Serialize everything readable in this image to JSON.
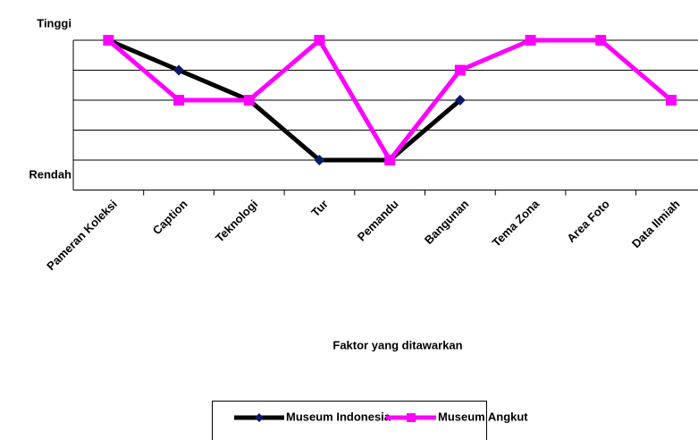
{
  "chart_data": {
    "type": "line",
    "y_top_label": "Tinggi",
    "y_bottom_label": "Rendah",
    "x_label": "Faktor yang ditawarkan",
    "categories": [
      "Pameran Koleksi",
      "Caption",
      "Teknologi",
      "Tur",
      "Pemandu",
      "Bangunan",
      "Tema Zona",
      "Area Foto",
      "Data Ilmiah"
    ],
    "series": [
      {
        "name": "Museum Indonesia",
        "color": "#000000",
        "marker": "diamond",
        "marker_color": "#0a1a66",
        "values": [
          5,
          4,
          3,
          1,
          1,
          3,
          null,
          null,
          null
        ]
      },
      {
        "name": "Museum Angkut",
        "color": "#ff00ff",
        "marker": "square",
        "marker_color": "#ff00ff",
        "values": [
          5,
          3,
          3,
          5,
          1,
          4,
          5,
          5,
          3
        ]
      }
    ],
    "ylim": [
      0,
      5
    ],
    "yticks": [
      1,
      2,
      3,
      4,
      5
    ],
    "grid": true
  }
}
